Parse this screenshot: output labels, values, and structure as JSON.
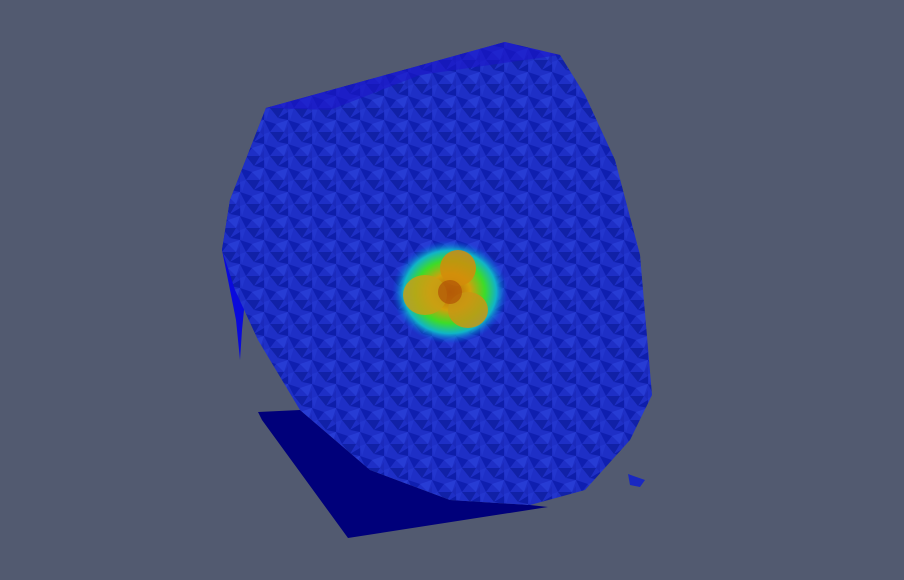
{
  "viewport": {
    "background": "#525a70"
  },
  "render": {
    "object": "tetrahedral-mesh-clip",
    "colormap": [
      "#0000c8",
      "#0a50e0",
      "#10c8b4",
      "#3cdc28",
      "#c8c814",
      "#d28c0a",
      "#b45a08"
    ],
    "face_colors": {
      "left-face": "#0a0adc",
      "bottom-face": "#00007a",
      "top-face": "#1a14c8",
      "clip-surface": "#1e30c8"
    }
  }
}
